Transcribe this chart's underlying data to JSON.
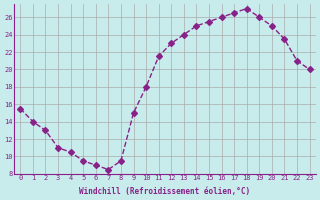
{
  "x": [
    0,
    1,
    2,
    3,
    4,
    5,
    6,
    7,
    8,
    9,
    10,
    11,
    12,
    13,
    14,
    15,
    16,
    17,
    18,
    19,
    20,
    21,
    22,
    23
  ],
  "y": [
    15.5,
    14.0,
    13.0,
    11.0,
    10.5,
    9.5,
    9.0,
    8.5,
    9.5,
    15.0,
    18.0,
    21.5,
    23.0,
    24.0,
    25.0,
    25.5,
    26.0,
    26.5,
    27.0,
    26.0,
    25.0,
    23.5,
    21.0,
    20.0
  ],
  "line_color": "#882288",
  "marker": "D",
  "marker_size": 3,
  "bg_color": "#c8ecec",
  "grid_color": "#aaaaaa",
  "xlabel": "Windchill (Refroidissement éolien,°C)",
  "xlabel_color": "#882288",
  "tick_color": "#882288",
  "xlim": [
    -0.5,
    23.5
  ],
  "ylim": [
    8,
    27.5
  ],
  "yticks": [
    8,
    10,
    12,
    14,
    16,
    18,
    20,
    22,
    24,
    26
  ],
  "xticks": [
    0,
    1,
    2,
    3,
    4,
    5,
    6,
    7,
    8,
    9,
    10,
    11,
    12,
    13,
    14,
    15,
    16,
    17,
    18,
    19,
    20,
    21,
    22,
    23
  ]
}
